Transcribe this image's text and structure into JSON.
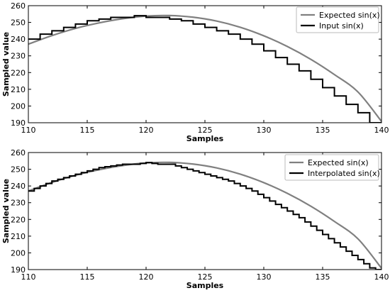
{
  "colors": {
    "expected": "#808080",
    "measured": "#000000",
    "legend_border": "#bbbbbb"
  },
  "chart_data": [
    {
      "type": "line",
      "xlabel": "Samples",
      "ylabel": "Sampled value",
      "xlim": [
        110,
        140
      ],
      "ylim": [
        190,
        260
      ],
      "xticks": [
        110,
        115,
        120,
        125,
        130,
        135,
        140
      ],
      "yticks": [
        190,
        200,
        210,
        220,
        230,
        240,
        250,
        260
      ],
      "grid": false,
      "legend_position": "top-right",
      "series": [
        {
          "name": "Expected sin(x)",
          "style": "smooth",
          "color": "#808080",
          "x": [
            110,
            112,
            114,
            116,
            118,
            120,
            122,
            124,
            126,
            128,
            130,
            132,
            134,
            136,
            138,
            140
          ],
          "y": [
            237.0,
            242.1,
            246.4,
            249.7,
            252.2,
            253.8,
            254.1,
            253.1,
            250.8,
            247.1,
            242.0,
            235.6,
            227.9,
            218.8,
            208.4,
            190.8
          ]
        },
        {
          "name": "Input sin(x)",
          "style": "step",
          "color": "#000000",
          "x": [
            110,
            111,
            112,
            113,
            114,
            115,
            116,
            117,
            118,
            119,
            120,
            121,
            122,
            123,
            124,
            125,
            126,
            127,
            128,
            129,
            130,
            131,
            132,
            133,
            134,
            135,
            136,
            137,
            138,
            139
          ],
          "y": [
            240,
            243,
            245,
            247,
            249,
            251,
            252,
            253,
            253,
            254,
            253,
            253,
            252,
            251,
            249,
            247,
            245,
            243,
            240,
            237,
            233,
            229,
            225,
            221,
            216,
            211,
            206,
            201,
            196,
            190
          ]
        }
      ]
    },
    {
      "type": "line",
      "xlabel": "Samples",
      "ylabel": "Sampled value",
      "xlim": [
        110,
        140
      ],
      "ylim": [
        190,
        260
      ],
      "xticks": [
        110,
        115,
        120,
        125,
        130,
        135,
        140
      ],
      "yticks": [
        190,
        200,
        210,
        220,
        230,
        240,
        250,
        260
      ],
      "grid": false,
      "legend_position": "top-right",
      "series": [
        {
          "name": "Expected sin(x)",
          "style": "smooth",
          "color": "#808080",
          "x": [
            110,
            112,
            114,
            116,
            118,
            120,
            122,
            124,
            126,
            128,
            130,
            132,
            134,
            136,
            138,
            140
          ],
          "y": [
            237.0,
            242.1,
            246.4,
            249.7,
            252.2,
            253.8,
            254.1,
            253.1,
            250.8,
            247.1,
            242.0,
            235.6,
            227.9,
            218.8,
            208.4,
            190.8
          ]
        },
        {
          "name": "Interpolated sin(x)",
          "style": "step",
          "color": "#000000",
          "x": [
            110,
            110.5,
            111,
            111.5,
            112,
            112.5,
            113,
            113.5,
            114,
            114.5,
            115,
            115.5,
            116,
            116.5,
            117,
            117.5,
            118,
            118.5,
            119,
            119.5,
            120,
            120.5,
            121,
            121.5,
            122,
            122.5,
            123,
            123.5,
            124,
            124.5,
            125,
            125.5,
            126,
            126.5,
            127,
            127.5,
            128,
            128.5,
            129,
            129.5,
            130,
            130.5,
            131,
            131.5,
            132,
            132.5,
            133,
            133.5,
            134,
            134.5,
            135,
            135.5,
            136,
            136.5,
            137,
            137.5,
            138,
            138.5,
            139,
            139.5
          ],
          "y": [
            237,
            238.5,
            240,
            241.5,
            243,
            244,
            245,
            246,
            247,
            248,
            249,
            250,
            251,
            251.5,
            252,
            252.5,
            253,
            253,
            253,
            253.5,
            254,
            253.5,
            253,
            253,
            253,
            252,
            251,
            250,
            249,
            248,
            247,
            246,
            245,
            244,
            243,
            241.5,
            240,
            238.5,
            237,
            235,
            233,
            231,
            229,
            227,
            225,
            223,
            221,
            218.5,
            216,
            213.5,
            211,
            208.5,
            206,
            203.5,
            201,
            198.5,
            196,
            193.5,
            191,
            190
          ]
        }
      ]
    }
  ]
}
